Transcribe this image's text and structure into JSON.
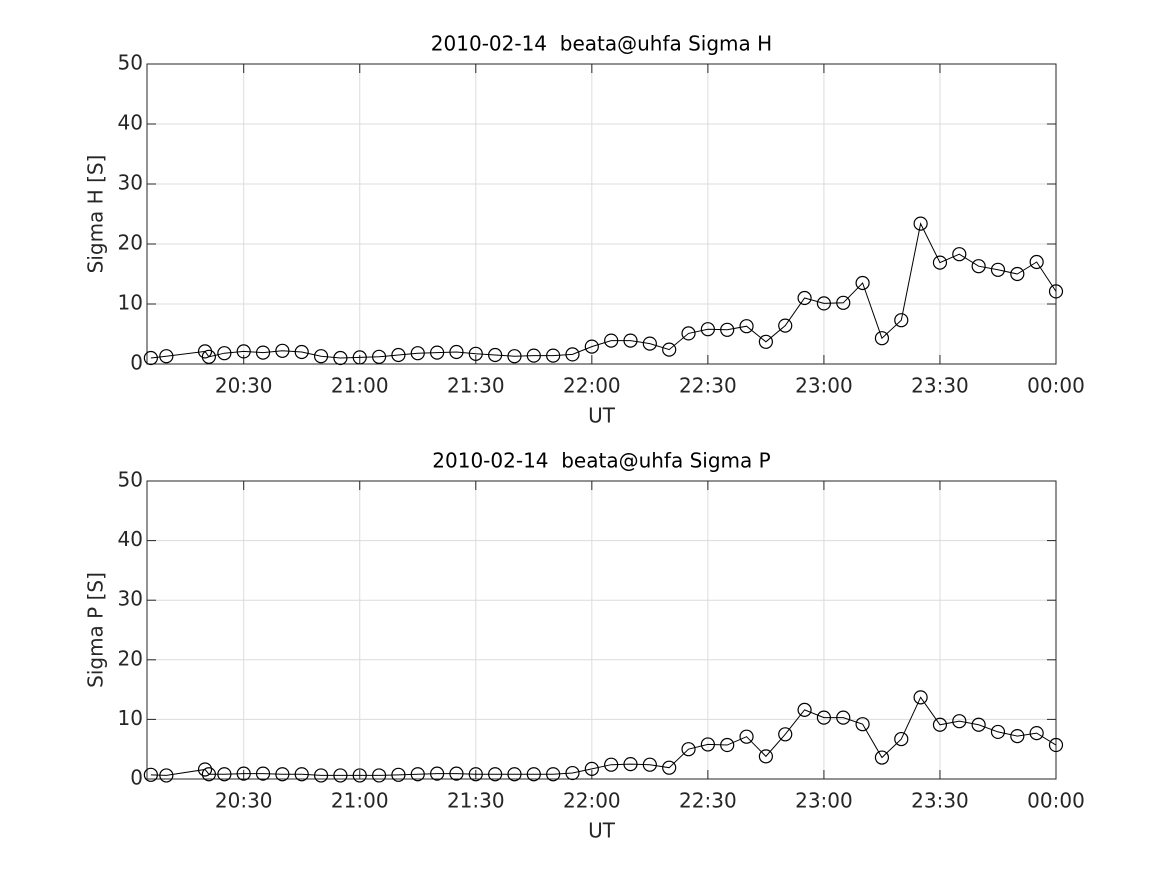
{
  "chart_data": [
    {
      "type": "line",
      "title": "2010-02-14  beata@uhfa Sigma H",
      "xlabel": "UT",
      "ylabel": "Sigma H [S]",
      "color": "#000000",
      "grid": true,
      "x": [
        "20:06",
        "20:10",
        "20:20",
        "20:21",
        "20:25",
        "20:30",
        "20:35",
        "20:40",
        "20:45",
        "20:50",
        "20:55",
        "21:00",
        "21:05",
        "21:10",
        "21:15",
        "21:20",
        "21:25",
        "21:30",
        "21:35",
        "21:40",
        "21:45",
        "21:50",
        "21:55",
        "22:00",
        "22:05",
        "22:10",
        "22:15",
        "22:20",
        "22:25",
        "22:30",
        "22:35",
        "22:40",
        "22:45",
        "22:50",
        "22:55",
        "23:00",
        "23:05",
        "23:10",
        "23:15",
        "23:20",
        "23:25",
        "23:30",
        "23:35",
        "23:40",
        "23:45",
        "23:50",
        "23:55",
        "00:00"
      ],
      "values": [
        1.0,
        1.3,
        2.1,
        1.2,
        1.8,
        2.1,
        1.9,
        2.2,
        2.0,
        1.3,
        1.0,
        1.1,
        1.2,
        1.5,
        1.8,
        1.9,
        2.0,
        1.7,
        1.5,
        1.3,
        1.4,
        1.4,
        1.6,
        2.9,
        3.9,
        3.9,
        3.4,
        2.4,
        5.1,
        5.8,
        5.7,
        6.3,
        3.7,
        6.4,
        11.0,
        10.1,
        10.2,
        13.5,
        4.3,
        7.3,
        23.4,
        16.9,
        18.3,
        16.3,
        15.7,
        15.0,
        17.0,
        12.1
      ],
      "xlim": [
        "20:05",
        "00:00"
      ],
      "xticks": [
        "20:30",
        "21:00",
        "21:30",
        "22:00",
        "22:30",
        "23:00",
        "23:30",
        "00:00"
      ],
      "ylim": [
        0,
        50
      ],
      "yticks": [
        0,
        10,
        20,
        30,
        40,
        50
      ]
    },
    {
      "type": "line",
      "title": "2010-02-14  beata@uhfa Sigma P",
      "xlabel": "UT",
      "ylabel": "Sigma P [S]",
      "color": "#000000",
      "grid": true,
      "x": [
        "20:06",
        "20:10",
        "20:20",
        "20:21",
        "20:25",
        "20:30",
        "20:35",
        "20:40",
        "20:45",
        "20:50",
        "20:55",
        "21:00",
        "21:05",
        "21:10",
        "21:15",
        "21:20",
        "21:25",
        "21:30",
        "21:35",
        "21:40",
        "21:45",
        "21:50",
        "21:55",
        "22:00",
        "22:05",
        "22:10",
        "22:15",
        "22:20",
        "22:25",
        "22:30",
        "22:35",
        "22:40",
        "22:45",
        "22:50",
        "22:55",
        "23:00",
        "23:05",
        "23:10",
        "23:15",
        "23:20",
        "23:25",
        "23:30",
        "23:35",
        "23:40",
        "23:45",
        "23:50",
        "23:55",
        "00:00"
      ],
      "values": [
        0.7,
        0.6,
        1.6,
        0.8,
        0.8,
        0.9,
        0.9,
        0.8,
        0.8,
        0.6,
        0.6,
        0.6,
        0.6,
        0.7,
        0.8,
        0.9,
        0.9,
        0.8,
        0.8,
        0.8,
        0.8,
        0.8,
        1.0,
        1.7,
        2.4,
        2.5,
        2.4,
        1.9,
        5.0,
        5.8,
        5.7,
        7.1,
        3.8,
        7.5,
        11.6,
        10.3,
        10.3,
        9.2,
        3.6,
        6.7,
        13.7,
        9.1,
        9.7,
        9.1,
        7.9,
        7.2,
        7.7,
        5.7
      ],
      "xlim": [
        "20:05",
        "00:00"
      ],
      "xticks": [
        "20:30",
        "21:00",
        "21:30",
        "22:00",
        "22:30",
        "23:00",
        "23:30",
        "00:00"
      ],
      "ylim": [
        0,
        50
      ],
      "yticks": [
        0,
        10,
        20,
        30,
        40,
        50
      ]
    }
  ]
}
